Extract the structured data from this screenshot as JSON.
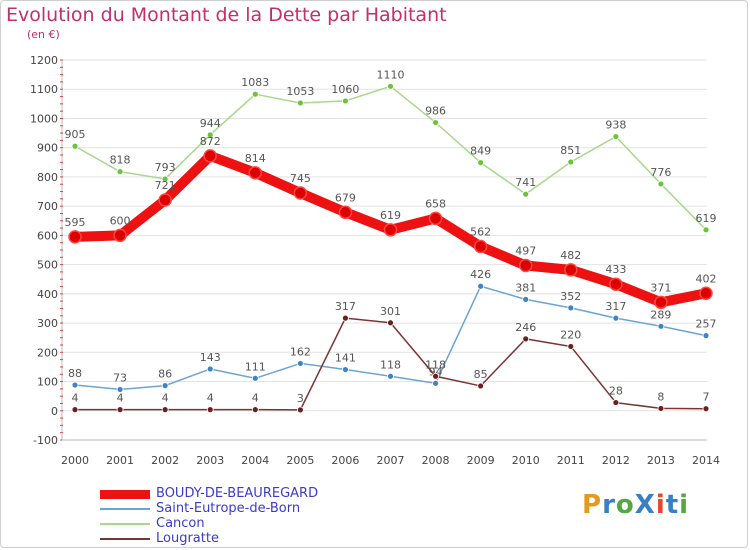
{
  "header": {
    "title": "Evolution du Montant de la Dette par Habitant",
    "subtitle": "(en €)"
  },
  "logo": {
    "text": "ProXiti",
    "colors": [
      "#e39a1e",
      "#3a7fc6",
      "#53a93f",
      "#3a7fc6",
      "#e04a2a",
      "#3a7fc6",
      "#53a93f"
    ]
  },
  "chart_data": {
    "type": "line",
    "title": "Evolution du Montant de la Dette par Habitant",
    "subtitle": "(en €)",
    "x": [
      2000,
      2001,
      2002,
      2003,
      2004,
      2005,
      2006,
      2007,
      2008,
      2009,
      2010,
      2011,
      2012,
      2013,
      2014
    ],
    "ylim": [
      -100,
      1200
    ],
    "yticks": [
      -100,
      0,
      100,
      200,
      300,
      400,
      500,
      600,
      700,
      800,
      900,
      1000,
      1100,
      1200
    ],
    "grid": "horizontal",
    "legend_position": "bottom-left",
    "series": [
      {
        "name": "BOUDY-DE-BEAUREGARD",
        "color": "#ee1111",
        "point_color": "#dd0000",
        "values": [
          595,
          600,
          721,
          872,
          814,
          745,
          679,
          619,
          658,
          562,
          497,
          482,
          433,
          371,
          402
        ]
      },
      {
        "name": "Saint-Eutrope-de-Born",
        "color": "#6aa4d4",
        "point_color": "#3d84c6",
        "values": [
          88,
          73,
          86,
          143,
          111,
          162,
          141,
          118,
          94,
          426,
          381,
          352,
          317,
          289,
          257
        ]
      },
      {
        "name": "Cancon",
        "color": "#a8d88c",
        "point_color": "#6cc23a",
        "values": [
          905,
          818,
          793,
          944,
          1083,
          1053,
          1060,
          1110,
          986,
          849,
          741,
          851,
          938,
          776,
          619
        ]
      },
      {
        "name": "Lougratte",
        "color": "#7a3434",
        "point_color": "#6b1f1f",
        "values": [
          4,
          4,
          4,
          4,
          4,
          3,
          317,
          301,
          118,
          85,
          246,
          220,
          28,
          8,
          7
        ]
      }
    ]
  }
}
